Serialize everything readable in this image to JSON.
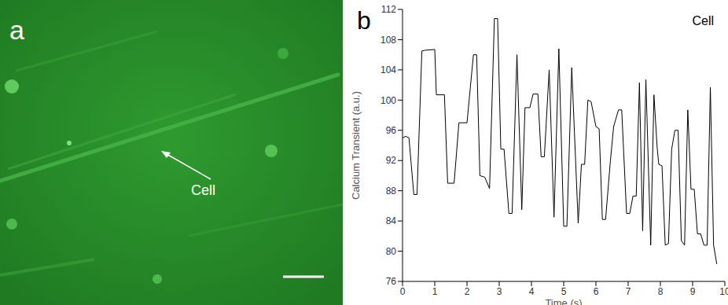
{
  "image_panel": {
    "label": "a",
    "annotation": "Cell"
  },
  "chart_panel_label": "b",
  "chart_data": {
    "type": "line",
    "annotations": [
      "Cell"
    ],
    "x_label": "Time (s)",
    "y_label": "Calcium Transient (a.u.)",
    "x": [
      0,
      0.1,
      0.2,
      0.35,
      0.45,
      0.6,
      0.7,
      1.0,
      1.05,
      1.3,
      1.4,
      1.6,
      1.75,
      2.0,
      2.2,
      2.3,
      2.4,
      2.55,
      2.7,
      2.85,
      2.95,
      3.05,
      3.15,
      3.3,
      3.4,
      3.55,
      3.7,
      3.8,
      3.95,
      4.05,
      4.2,
      4.3,
      4.4,
      4.55,
      4.7,
      4.85,
      5.0,
      5.1,
      5.25,
      5.45,
      5.55,
      5.65,
      5.75,
      5.85,
      6.0,
      6.1,
      6.2,
      6.3,
      6.45,
      6.55,
      6.7,
      6.8,
      6.95,
      7.05,
      7.15,
      7.25,
      7.35,
      7.45,
      7.55,
      7.7,
      7.8,
      7.9,
      7.95,
      8.05,
      8.15,
      8.25,
      8.35,
      8.45,
      8.55,
      8.65,
      8.75,
      8.85,
      8.95,
      9.05,
      9.15,
      9.25,
      9.35,
      9.45,
      9.55,
      9.65,
      9.75
    ],
    "values": [
      95,
      95.2,
      95,
      87.5,
      87.5,
      106.5,
      106.6,
      106.7,
      100.7,
      100.7,
      89,
      89,
      97,
      97,
      106,
      106,
      90,
      89.8,
      88.3,
      110.8,
      110.8,
      93.5,
      93.5,
      85,
      85,
      106,
      85.5,
      99,
      99,
      100.8,
      100.8,
      92.5,
      92.5,
      104,
      84.5,
      106.8,
      83.3,
      83.3,
      104.3,
      83.7,
      91.5,
      91.5,
      100,
      99.8,
      96.5,
      96.2,
      84.2,
      84.2,
      92,
      96.5,
      98.7,
      98.7,
      85,
      85,
      87.3,
      87.3,
      102.3,
      82.7,
      102.7,
      80.8,
      100.7,
      93.7,
      91.5,
      91.3,
      80.8,
      81,
      93.5,
      96,
      96,
      81.4,
      80.8,
      98.7,
      88.2,
      88.2,
      82.3,
      82.3,
      80.8,
      80.8,
      101.7,
      80.8,
      78.3
    ],
    "color": "#000000",
    "line_style": "solid",
    "xlim": [
      0,
      10
    ],
    "xticks": [
      0,
      1,
      2,
      3,
      4,
      5,
      6,
      7,
      8,
      9,
      10
    ],
    "ylim": [
      76,
      112
    ],
    "yticks": [
      76,
      80,
      84,
      88,
      92,
      96,
      100,
      104,
      108,
      112
    ],
    "grid": false
  }
}
